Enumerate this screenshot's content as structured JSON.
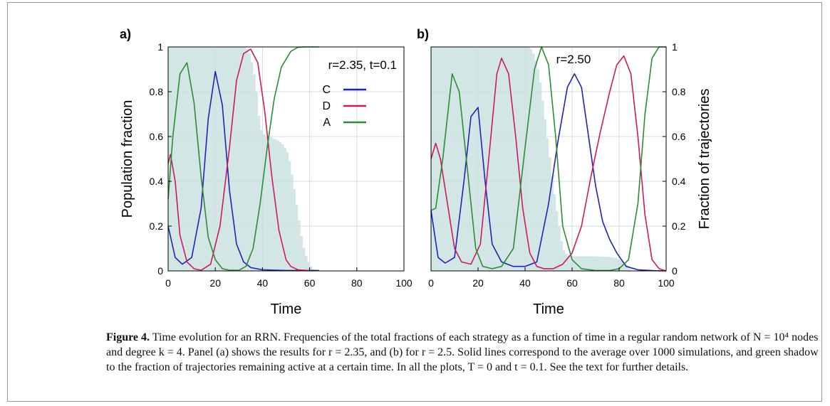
{
  "caption": {
    "label": "Figure 4.",
    "text": "  Time evolution for an RRN. Frequencies of the total fractions of each strategy as a function of time in a regular random network of N = 10⁴ nodes and degree k = 4. Panel (a) shows the results for r = 2.35, and (b) for r = 2.5. Solid lines correspond to the average over 1000 simulations, and green shadow to the fraction of trajectories remaining active at a certain time. In all the plots, T = 0 and t = 0.1. See the text for further details."
  },
  "colors": {
    "C": "#2222bb",
    "D": "#cc1a5e",
    "A": "#2e8b36",
    "shadow": "#d3e6e6",
    "grid": "#cfdede"
  },
  "chart_data": [
    {
      "type": "line",
      "panel_label": "a)",
      "annotation": "r=2.35,  t=0.1",
      "xlabel": "Time",
      "ylabel": "Population fraction",
      "xlim": [
        0,
        100
      ],
      "ylim": [
        0,
        1
      ],
      "xticks": [
        "0",
        "20",
        "40",
        "60",
        "80",
        "100"
      ],
      "yticks": [
        "0",
        "0.2",
        "0.4",
        "0.6",
        "0.8",
        "1"
      ],
      "grid": true,
      "legend_position": "upper-right",
      "series": [
        {
          "name": "C",
          "x": [
            0,
            3,
            6,
            10,
            14,
            17,
            20,
            23,
            26,
            29,
            32,
            35,
            40,
            50,
            64
          ],
          "y": [
            0.2,
            0.06,
            0.03,
            0.06,
            0.28,
            0.68,
            0.89,
            0.74,
            0.36,
            0.12,
            0.04,
            0.015,
            0.005,
            0.002,
            0.002
          ]
        },
        {
          "name": "D",
          "x": [
            0,
            1,
            3,
            5,
            8,
            11,
            14,
            18,
            22,
            26,
            29,
            32,
            35,
            38,
            41,
            44,
            47,
            50,
            52,
            55,
            60
          ],
          "y": [
            0.48,
            0.52,
            0.4,
            0.16,
            0.04,
            0.01,
            0.003,
            0.03,
            0.2,
            0.55,
            0.85,
            0.97,
            0.99,
            0.93,
            0.71,
            0.42,
            0.18,
            0.05,
            0.02,
            0.005,
            0.001
          ]
        },
        {
          "name": "A",
          "x": [
            0,
            2,
            5,
            8,
            11,
            14,
            17,
            20,
            23,
            26,
            30,
            33,
            36,
            39,
            42,
            45,
            48,
            52,
            55,
            58,
            60,
            64
          ],
          "y": [
            0.32,
            0.6,
            0.88,
            0.93,
            0.75,
            0.42,
            0.15,
            0.05,
            0.01,
            0.003,
            0.003,
            0.02,
            0.1,
            0.3,
            0.55,
            0.77,
            0.91,
            0.98,
            0.998,
            1,
            1,
            1
          ]
        }
      ],
      "shadow": {
        "name": "Fraction of trajectories",
        "x": [
          0,
          33,
          35,
          37,
          39,
          41,
          43,
          45,
          47,
          49,
          51,
          53,
          55,
          57,
          59,
          61,
          63
        ],
        "y": [
          1,
          1,
          0.96,
          0.85,
          0.64,
          0.6,
          0.6,
          0.59,
          0.58,
          0.56,
          0.52,
          0.4,
          0.26,
          0.12,
          0.05,
          0.01,
          0
        ]
      }
    },
    {
      "type": "line",
      "panel_label": "b)",
      "annotation": "r=2.50",
      "xlabel": "Time",
      "ylabel": "Fraction of trajectories",
      "xlim": [
        0,
        100
      ],
      "ylim": [
        0,
        1
      ],
      "xticks": [
        "0",
        "20",
        "40",
        "60",
        "80",
        "100"
      ],
      "yticks": [
        "0",
        "0.2",
        "0.4",
        "0.6",
        "0.8",
        "1"
      ],
      "grid": true,
      "series": [
        {
          "name": "C",
          "x": [
            0,
            3,
            6,
            10,
            14,
            17,
            20,
            23,
            26,
            30,
            35,
            40,
            45,
            50,
            54,
            58,
            61,
            64,
            67,
            70,
            73,
            76,
            79,
            83,
            88,
            95,
            100
          ],
          "y": [
            0.27,
            0.06,
            0.035,
            0.06,
            0.4,
            0.69,
            0.73,
            0.4,
            0.12,
            0.04,
            0.02,
            0.02,
            0.04,
            0.3,
            0.58,
            0.82,
            0.88,
            0.82,
            0.6,
            0.38,
            0.22,
            0.14,
            0.08,
            0.02,
            0.005,
            0.001,
            0
          ]
        },
        {
          "name": "D",
          "x": [
            0,
            2,
            4,
            7,
            10,
            13,
            17,
            21,
            25,
            28,
            30,
            33,
            36,
            39,
            42,
            45,
            48,
            52,
            56,
            60,
            64,
            68,
            72,
            76,
            79,
            82,
            85,
            88,
            91,
            94,
            97,
            100
          ],
          "y": [
            0.5,
            0.57,
            0.5,
            0.3,
            0.1,
            0.04,
            0.03,
            0.12,
            0.55,
            0.88,
            0.95,
            0.88,
            0.6,
            0.28,
            0.08,
            0.02,
            0.01,
            0.01,
            0.03,
            0.08,
            0.2,
            0.42,
            0.62,
            0.8,
            0.92,
            0.96,
            0.88,
            0.6,
            0.25,
            0.05,
            0.01,
            0
          ]
        },
        {
          "name": "A",
          "x": [
            0,
            2,
            5,
            9,
            12,
            16,
            19,
            22,
            26,
            30,
            35,
            40,
            44,
            47,
            50,
            53,
            56,
            60,
            64,
            70,
            76,
            80,
            84,
            88,
            91,
            94,
            97,
            100
          ],
          "y": [
            0.27,
            0.28,
            0.5,
            0.88,
            0.8,
            0.4,
            0.1,
            0.02,
            0.01,
            0.02,
            0.1,
            0.55,
            0.9,
            1,
            0.92,
            0.6,
            0.2,
            0.05,
            0.01,
            0.002,
            0.002,
            0.01,
            0.05,
            0.3,
            0.7,
            0.95,
            1,
            1
          ]
        }
      ],
      "shadow": {
        "name": "Fraction of trajectories",
        "x": [
          0,
          42,
          44,
          46,
          48,
          50,
          52,
          54,
          56,
          58,
          60,
          65,
          70,
          75,
          78,
          80,
          82,
          84,
          85,
          100
        ],
        "y": [
          1,
          1,
          0.96,
          0.88,
          0.72,
          0.55,
          0.38,
          0.23,
          0.1,
          0.07,
          0.065,
          0.065,
          0.065,
          0.063,
          0.06,
          0.05,
          0.04,
          0.02,
          0,
          0
        ]
      }
    }
  ]
}
